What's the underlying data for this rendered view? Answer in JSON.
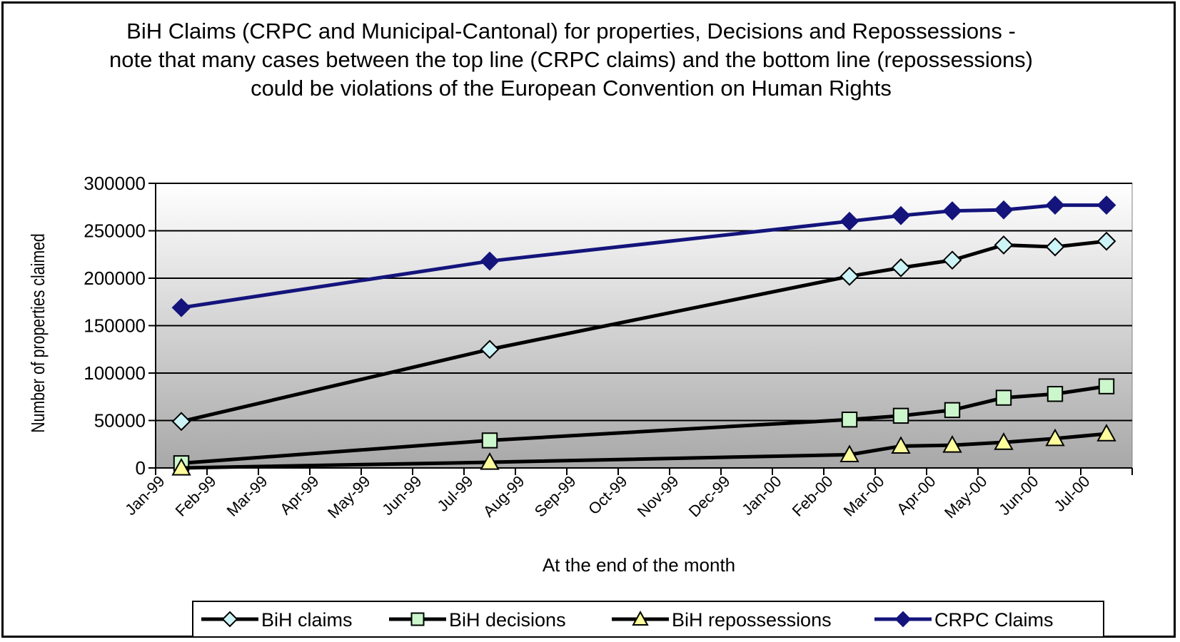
{
  "chart_data": {
    "type": "line",
    "title": "BiH Claims (CRPC and Municipal-Cantonal) for properties, Decisions and Repossessions - note that many cases between the top line (CRPC claims) and the bottom line (repossessions) could be violations of the European Convention on Human Rights",
    "xlabel": "At the end of the month",
    "ylabel": "Number of properties claimed",
    "ylim": [
      0,
      300000
    ],
    "yticks": [
      "0",
      "50000",
      "100000",
      "150000",
      "200000",
      "250000",
      "300000"
    ],
    "categories": [
      "Jan-99",
      "Feb-99",
      "Mar-99",
      "Apr-99",
      "May-99",
      "Jun-99",
      "Jul-99",
      "Aug-99",
      "Sep-99",
      "Oct-99",
      "Nov-99",
      "Dec-99",
      "Jan-00",
      "Feb-00",
      "Mar-00",
      "Apr-00",
      "May-00",
      "Jun-00",
      "Jul-00"
    ],
    "grid": true,
    "legend_position": "bottom",
    "series": [
      {
        "name": "BiH claims",
        "color": "#000000",
        "marker": "diamond-open",
        "marker_fill": "#cdf4f6",
        "points": [
          [
            0.5,
            49000
          ],
          [
            6.5,
            125000
          ],
          [
            13.5,
            202000
          ],
          [
            14.5,
            211000
          ],
          [
            15.5,
            219000
          ],
          [
            16.5,
            235000
          ],
          [
            17.5,
            233000
          ],
          [
            18.5,
            239000
          ]
        ]
      },
      {
        "name": "BiH decisions",
        "color": "#000000",
        "marker": "square-open",
        "marker_fill": "#ccf7cc",
        "points": [
          [
            0.5,
            5000
          ],
          [
            6.5,
            29000
          ],
          [
            13.5,
            51000
          ],
          [
            14.5,
            55000
          ],
          [
            15.5,
            61000
          ],
          [
            16.5,
            74000
          ],
          [
            17.5,
            78000
          ],
          [
            18.5,
            86000
          ]
        ]
      },
      {
        "name": "BiH repossessions",
        "color": "#000000",
        "marker": "triangle-open",
        "marker_fill": "#fcfc9c",
        "points": [
          [
            0.5,
            0
          ],
          [
            6.5,
            6000
          ],
          [
            13.5,
            14000
          ],
          [
            14.5,
            23000
          ],
          [
            15.5,
            24000
          ],
          [
            16.5,
            27000
          ],
          [
            17.5,
            31000
          ],
          [
            18.5,
            36000
          ]
        ]
      },
      {
        "name": "CRPC Claims",
        "color": "#14147c",
        "marker": "diamond-filled",
        "marker_fill": "#14147c",
        "points": [
          [
            0.5,
            169000
          ],
          [
            6.5,
            218000
          ],
          [
            13.5,
            260000
          ],
          [
            14.5,
            266000
          ],
          [
            15.5,
            271000
          ],
          [
            16.5,
            272000
          ],
          [
            17.5,
            277000
          ],
          [
            18.5,
            277000
          ]
        ]
      }
    ]
  }
}
